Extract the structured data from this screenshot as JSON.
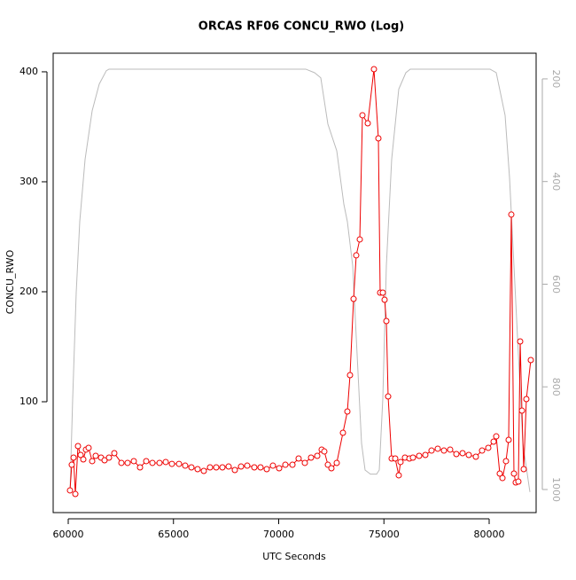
{
  "chart_data": {
    "type": "line",
    "title": "ORCAS RF06 CONCU_RWO (Log)",
    "x_label": "UTC Seconds",
    "y_label": "CONCU_RWO",
    "xlim": [
      59284,
      82232
    ],
    "xticks": [
      60000,
      65000,
      70000,
      75000,
      80000
    ],
    "ylim": [
      -0.8,
      416.9
    ],
    "yticks": [
      100,
      200,
      300,
      400
    ],
    "y2lim": [
      1045,
      150
    ],
    "y2ticks": [
      200,
      400,
      600,
      800,
      1000
    ],
    "series": [
      {
        "color": "#ee0000",
        "marker": "circle",
        "x": [
          60084,
          60168,
          60253,
          60337,
          60463,
          60589,
          60716,
          60842,
          60968,
          61137,
          61305,
          61558,
          61726,
          61937,
          62189,
          62526,
          62821,
          63116,
          63411,
          63705,
          64000,
          64337,
          64632,
          64926,
          65263,
          65558,
          65853,
          66147,
          66442,
          66737,
          67032,
          67326,
          67621,
          67916,
          68211,
          68505,
          68842,
          69137,
          69432,
          69726,
          70021,
          70316,
          70653,
          70947,
          71242,
          71537,
          71832,
          72042,
          72168,
          72337,
          72505,
          72758,
          73053,
          73263,
          73389,
          73558,
          73684,
          73853,
          73979,
          74232,
          74526,
          74737,
          74821,
          74947,
          75032,
          75116,
          75200,
          75368,
          75537,
          75705,
          75789,
          76000,
          76211,
          76379,
          76674,
          76968,
          77263,
          77558,
          77853,
          78147,
          78442,
          78737,
          79032,
          79368,
          79663,
          79958,
          80211,
          80337,
          80505,
          80632,
          80800,
          80926,
          81053,
          81179,
          81263,
          81389,
          81474,
          81558,
          81642,
          81768,
          81979
        ],
        "values": [
          19.4,
          42.7,
          49.2,
          16.1,
          59.7,
          51.6,
          47.6,
          56.5,
          58.1,
          46,
          50.8,
          49.2,
          46.8,
          49.2,
          53.2,
          44.4,
          44.4,
          46,
          40.3,
          46,
          44.4,
          44.4,
          45.2,
          43.5,
          43.5,
          41.9,
          40.3,
          38.7,
          37.1,
          40.3,
          40.3,
          40.3,
          41.1,
          37.9,
          41.1,
          41.9,
          40.3,
          40.3,
          38.7,
          41.9,
          39.5,
          42.7,
          42.7,
          48.4,
          44.4,
          49.2,
          50.8,
          56.5,
          54.8,
          42.7,
          39.5,
          44.4,
          71.8,
          91.1,
          124.2,
          193.5,
          233.1,
          247.6,
          360.5,
          353.2,
          402.4,
          339.5,
          199.2,
          199.2,
          192.7,
          173.4,
          104.8,
          48.4,
          48.4,
          33.1,
          45.2,
          49.2,
          48.4,
          49.2,
          50.8,
          51.6,
          55.6,
          57.3,
          55.6,
          56.5,
          52.4,
          53.2,
          51.6,
          50,
          55.6,
          58.1,
          63.7,
          68.5,
          34.7,
          30.6,
          46,
          65.3,
          270.2,
          34.7,
          26.6,
          27.4,
          154.8,
          91.9,
          38.7,
          102.4,
          137.9
        ]
      },
      {
        "color": "#bbbbbb",
        "axis": "y2",
        "x": [
          60084,
          60211,
          60379,
          60547,
          60800,
          61137,
          61474,
          61811,
          61937,
          71284,
          71705,
          72000,
          72337,
          72758,
          73095,
          73263,
          73516,
          73726,
          73937,
          74105,
          74358,
          74653,
          74779,
          74947,
          75116,
          75368,
          75705,
          76042,
          76253,
          80042,
          80337,
          80758,
          80968,
          81179,
          81389,
          81600,
          81937
        ],
        "values": [
          1005,
          823,
          616,
          478,
          357,
          262,
          210,
          184,
          181,
          181,
          188,
          198,
          288,
          340,
          444,
          478,
          564,
          737,
          910,
          962,
          970,
          970,
          962,
          823,
          564,
          357,
          220,
          188,
          181,
          181,
          188,
          271,
          392,
          564,
          737,
          910,
          1005
        ]
      }
    ]
  }
}
